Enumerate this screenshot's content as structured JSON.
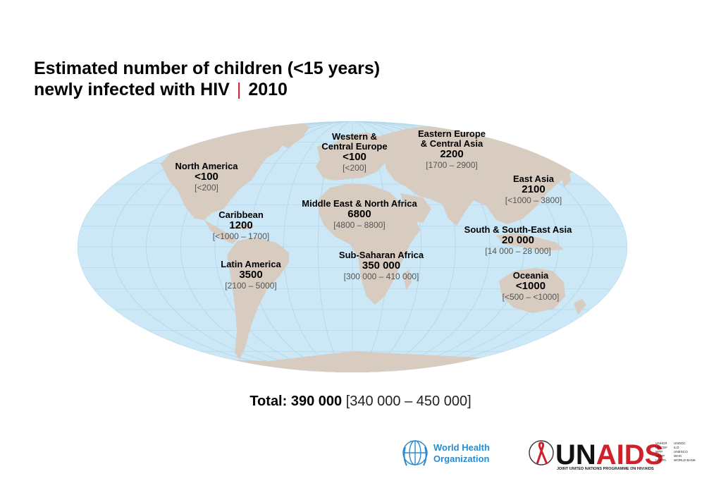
{
  "title": {
    "line1": "Estimated number of children (<15 years)",
    "line2": "newly infected with HIV",
    "separator": "|",
    "year": "2010"
  },
  "colors": {
    "ocean": "#cce8f6",
    "land": "#d8cbc0",
    "graticule": "#b3d6e8",
    "title_separator": "#d0202a",
    "range_text": "#555555",
    "who_blue": "#2a8ad0",
    "unaids_red": "#d0202a"
  },
  "regions": [
    {
      "id": "north-america",
      "name": [
        "North America"
      ],
      "value": "<100",
      "range": "[<200]"
    },
    {
      "id": "western-central-europe",
      "name": [
        "Western &",
        "Central Europe"
      ],
      "value": "<100",
      "range": "[<200]"
    },
    {
      "id": "eastern-europe-central-asia",
      "name": [
        "Eastern Europe",
        "& Central Asia"
      ],
      "value": "2200",
      "range": "[1700 – 2900]"
    },
    {
      "id": "east-asia",
      "name": [
        "East Asia"
      ],
      "value": "2100",
      "range": "[<1000 – 3800]"
    },
    {
      "id": "middle-east-north-africa",
      "name": [
        "Middle East & North Africa"
      ],
      "value": "6800",
      "range": "[4800 – 8800]"
    },
    {
      "id": "caribbean",
      "name": [
        "Caribbean"
      ],
      "value": "1200",
      "range": "[<1000 – 1700]"
    },
    {
      "id": "south-south-east-asia",
      "name": [
        "South & South-East Asia"
      ],
      "value": "20 000",
      "range": "[14 000 – 28 000]"
    },
    {
      "id": "latin-america",
      "name": [
        "Latin America"
      ],
      "value": "3500",
      "range": "[2100 – 5000]"
    },
    {
      "id": "sub-saharan-africa",
      "name": [
        "Sub-Saharan Africa"
      ],
      "value": "350 000",
      "range": "[300 000 – 410 000]"
    },
    {
      "id": "oceania",
      "name": [
        "Oceania"
      ],
      "value": "<1000",
      "range": "[<500 – <1000]"
    }
  ],
  "total": {
    "label": "Total:",
    "value": "390 000",
    "range": "[340 000 – 450 000]"
  },
  "logos": {
    "who": {
      "line1": "World Health",
      "line2": "Organization"
    },
    "unaids": {
      "word_un": "UN",
      "word_aids": "AIDS",
      "subtitle": "JOINT UNITED NATIONS PROGRAMME ON HIV/AIDS",
      "cosponsors_col1": [
        "UNHCR",
        "UNICEF",
        "WFP",
        "UNDP",
        "UNFPA"
      ],
      "cosponsors_col2": [
        "UNODC",
        "ILO",
        "UNESCO",
        "WHO",
        "WORLD BANK"
      ]
    }
  }
}
